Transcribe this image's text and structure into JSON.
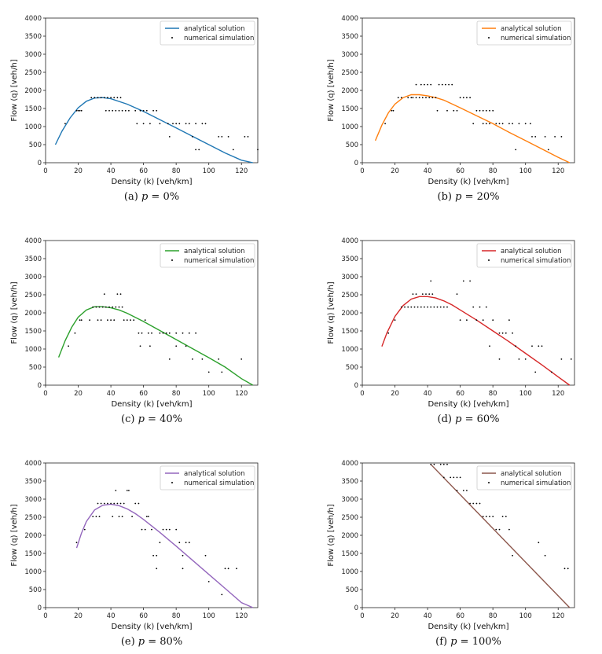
{
  "figure": {
    "title": ""
  },
  "chart_data": [
    {
      "type": "line+scatter",
      "label": "(a)",
      "caption_var": "p",
      "caption_value": "= 0%",
      "color": "#1f77b4",
      "xlabel": "Density (k) [veh/km]",
      "ylabel": "Flow (q) [veh/h]",
      "xlim": [
        0,
        130
      ],
      "ylim": [
        0,
        4000
      ],
      "xticks": [
        "0",
        "20",
        "40",
        "60",
        "80",
        "100",
        "120"
      ],
      "yticks": [
        "0",
        "500",
        "1000",
        "1500",
        "2000",
        "2500",
        "3000",
        "3500",
        "4000"
      ],
      "legend": {
        "position": "top-right",
        "line": "analytical solution",
        "points": "numerical simulation"
      },
      "analytical": {
        "x": [
          6,
          10,
          15,
          20,
          25,
          30,
          35,
          40,
          50,
          60,
          70,
          80,
          90,
          100,
          110,
          120,
          127
        ],
        "y": [
          500,
          870,
          1240,
          1520,
          1700,
          1790,
          1800,
          1770,
          1620,
          1420,
          1190,
          960,
          730,
          500,
          270,
          70,
          0
        ]
      },
      "numerical": {
        "x": [
          12,
          19,
          20,
          21,
          22,
          28,
          30,
          32,
          34,
          36,
          38,
          40,
          42,
          44,
          46,
          37,
          39,
          41,
          43,
          45,
          47,
          49,
          51,
          55,
          58,
          60,
          62,
          66,
          68,
          56,
          60,
          64,
          70,
          75,
          78,
          80,
          82,
          86,
          88,
          92,
          96,
          98,
          76,
          90,
          106,
          108,
          112,
          115,
          122,
          124,
          130,
          92,
          94
        ],
        "y": [
          1080,
          1440,
          1440,
          1440,
          1440,
          1800,
          1800,
          1800,
          1800,
          1800,
          1800,
          1800,
          1800,
          1800,
          1800,
          1440,
          1440,
          1440,
          1440,
          1440,
          1440,
          1440,
          1440,
          1440,
          1440,
          1440,
          1440,
          1440,
          1440,
          1080,
          1080,
          1080,
          1080,
          1080,
          1080,
          1080,
          1080,
          1080,
          1080,
          1080,
          1080,
          1080,
          720,
          720,
          720,
          720,
          720,
          360,
          720,
          720,
          360,
          360,
          360
        ]
      }
    },
    {
      "type": "line+scatter",
      "label": "(b)",
      "caption_var": "p",
      "caption_value": "= 20%",
      "color": "#ff7f0e",
      "xlabel": "Density (k) [veh/km]",
      "ylabel": "Flow (q) [veh/h]",
      "xlim": [
        0,
        130
      ],
      "ylim": [
        0,
        4000
      ],
      "xticks": [
        "0",
        "20",
        "40",
        "60",
        "80",
        "100",
        "120"
      ],
      "yticks": [
        "0",
        "500",
        "1000",
        "1500",
        "2000",
        "2500",
        "3000",
        "3500",
        "4000"
      ],
      "legend": {
        "position": "top-right",
        "line": "analytical solution",
        "points": "numerical simulation"
      },
      "analytical": {
        "x": [
          8,
          12,
          16,
          20,
          25,
          30,
          35,
          40,
          45,
          50,
          60,
          70,
          80,
          90,
          100,
          110,
          120,
          127
        ],
        "y": [
          610,
          1040,
          1380,
          1620,
          1800,
          1880,
          1880,
          1850,
          1800,
          1730,
          1520,
          1300,
          1080,
          840,
          610,
          380,
          150,
          0
        ]
      },
      "numerical": {
        "x": [
          14,
          18,
          19,
          22,
          24,
          28,
          30,
          31,
          33,
          35,
          37,
          39,
          41,
          43,
          45,
          33,
          36,
          38,
          40,
          42,
          47,
          49,
          51,
          53,
          55,
          60,
          62,
          64,
          66,
          70,
          72,
          74,
          76,
          78,
          80,
          84,
          46,
          52,
          56,
          58,
          68,
          74,
          76,
          78,
          82,
          86,
          90,
          92,
          96,
          100,
          103,
          104,
          94,
          106,
          112,
          114,
          118,
          122
        ],
        "y": [
          1080,
          1440,
          1440,
          1800,
          1800,
          1800,
          1800,
          1800,
          1800,
          1800,
          1800,
          1800,
          1800,
          1800,
          1800,
          2160,
          2160,
          2160,
          2160,
          2160,
          2160,
          2160,
          2160,
          2160,
          2160,
          1800,
          1800,
          1800,
          1800,
          1440,
          1440,
          1440,
          1440,
          1440,
          1440,
          1080,
          1440,
          1440,
          1440,
          1440,
          1080,
          1080,
          1080,
          1080,
          1080,
          1080,
          1080,
          1080,
          1080,
          1080,
          1080,
          720,
          360,
          720,
          720,
          360,
          720,
          720
        ]
      }
    },
    {
      "type": "line+scatter",
      "label": "(c)",
      "caption_var": "p",
      "caption_value": "= 40%",
      "color": "#2ca02c",
      "xlabel": "Density (k) [veh/km]",
      "ylabel": "Flow (q) [veh/h]",
      "xlim": [
        0,
        130
      ],
      "ylim": [
        0,
        4000
      ],
      "xticks": [
        "0",
        "20",
        "40",
        "60",
        "80",
        "100",
        "120"
      ],
      "yticks": [
        "0",
        "500",
        "1000",
        "1500",
        "2000",
        "2500",
        "3000",
        "3500",
        "4000"
      ],
      "legend": {
        "position": "top-right",
        "line": "analytical solution",
        "points": "numerical simulation"
      },
      "analytical": {
        "x": [
          8,
          12,
          16,
          20,
          25,
          30,
          35,
          40,
          45,
          50,
          60,
          70,
          80,
          90,
          100,
          110,
          120,
          127
        ],
        "y": [
          770,
          1230,
          1600,
          1880,
          2080,
          2170,
          2170,
          2140,
          2080,
          1990,
          1760,
          1510,
          1260,
          1010,
          760,
          500,
          180,
          0
        ]
      },
      "numerical": {
        "x": [
          14,
          18,
          21,
          22,
          27,
          29,
          31,
          33,
          35,
          37,
          39,
          41,
          43,
          45,
          47,
          36,
          44,
          46,
          32,
          34,
          38,
          40,
          42,
          48,
          50,
          52,
          54,
          57,
          59,
          61,
          63,
          65,
          70,
          72,
          74,
          76,
          80,
          84,
          88,
          92,
          58,
          64,
          80,
          86,
          76,
          90,
          96,
          100,
          108,
          120,
          106
        ],
        "y": [
          1080,
          1440,
          1800,
          1800,
          1800,
          2160,
          2160,
          2160,
          2160,
          2160,
          2160,
          2160,
          2160,
          2160,
          2160,
          2520,
          2520,
          2520,
          1800,
          1800,
          1800,
          1800,
          1800,
          1800,
          1800,
          1800,
          1800,
          1440,
          1440,
          1800,
          1440,
          1440,
          1440,
          1440,
          1440,
          1440,
          1440,
          1440,
          1440,
          1440,
          1080,
          1080,
          1080,
          1080,
          720,
          720,
          720,
          360,
          360,
          720,
          720
        ]
      }
    },
    {
      "type": "line+scatter",
      "label": "(d)",
      "caption_var": "p",
      "caption_value": "= 60%",
      "color": "#d62728",
      "xlabel": "Density (k) [veh/km]",
      "ylabel": "Flow (q) [veh/h]",
      "xlim": [
        0,
        130
      ],
      "ylim": [
        0,
        4000
      ],
      "xticks": [
        "0",
        "20",
        "40",
        "60",
        "80",
        "100",
        "120"
      ],
      "yticks": [
        "0",
        "500",
        "1000",
        "1500",
        "2000",
        "2500",
        "3000",
        "3500",
        "4000"
      ],
      "legend": {
        "position": "top-right",
        "line": "analytical solution",
        "points": "numerical simulation"
      },
      "analytical": {
        "x": [
          12,
          15,
          20,
          25,
          30,
          35,
          40,
          45,
          50,
          55,
          60,
          70,
          80,
          90,
          100,
          110,
          120,
          127
        ],
        "y": [
          1070,
          1440,
          1900,
          2200,
          2380,
          2450,
          2450,
          2410,
          2330,
          2220,
          2080,
          1800,
          1500,
          1200,
          880,
          560,
          230,
          0
        ]
      },
      "numerical": {
        "x": [
          16,
          20,
          24,
          26,
          28,
          30,
          32,
          34,
          36,
          38,
          40,
          42,
          44,
          46,
          48,
          50,
          52,
          31,
          33,
          37,
          39,
          41,
          43,
          58,
          62,
          66,
          68,
          72,
          76,
          42,
          60,
          64,
          70,
          74,
          80,
          84,
          86,
          88,
          90,
          92,
          78,
          94,
          96,
          100,
          104,
          108,
          110,
          116,
          122,
          128,
          84,
          106
        ],
        "y": [
          1440,
          1800,
          2160,
          2160,
          2160,
          2160,
          2160,
          2160,
          2160,
          2160,
          2160,
          2160,
          2160,
          2160,
          2160,
          2160,
          2160,
          2520,
          2520,
          2520,
          2520,
          2520,
          2520,
          2520,
          2880,
          2880,
          2160,
          2160,
          2160,
          2880,
          1800,
          1800,
          1800,
          1800,
          1800,
          1440,
          1440,
          1440,
          1800,
          1440,
          1080,
          1080,
          720,
          720,
          1080,
          1080,
          1080,
          360,
          720,
          720,
          720,
          360
        ]
      }
    },
    {
      "type": "line+scatter",
      "label": "(e)",
      "caption_var": "p",
      "caption_value": "= 80%",
      "color": "#9467bd",
      "xlabel": "Density (k) [veh/km]",
      "ylabel": "Flow (q) [veh/h]",
      "xlim": [
        0,
        130
      ],
      "ylim": [
        0,
        4000
      ],
      "xticks": [
        "0",
        "20",
        "40",
        "60",
        "80",
        "100",
        "120"
      ],
      "yticks": [
        "0",
        "500",
        "1000",
        "1500",
        "2000",
        "2500",
        "3000",
        "3500",
        "4000"
      ],
      "legend": {
        "position": "top-right",
        "line": "analytical solution",
        "points": "numerical simulation"
      },
      "analytical": {
        "x": [
          19,
          22,
          25,
          30,
          35,
          40,
          45,
          50,
          55,
          60,
          70,
          80,
          90,
          100,
          110,
          120,
          127
        ],
        "y": [
          1650,
          2060,
          2380,
          2700,
          2830,
          2860,
          2820,
          2730,
          2600,
          2440,
          2080,
          1700,
          1310,
          920,
          530,
          140,
          0
        ]
      },
      "numerical": {
        "x": [
          19,
          24,
          29,
          32,
          34,
          36,
          38,
          40,
          42,
          44,
          46,
          48,
          31,
          33,
          41,
          45,
          47,
          53,
          55,
          57,
          43,
          51,
          59,
          61,
          63,
          65,
          50,
          62,
          66,
          70,
          74,
          76,
          82,
          86,
          88,
          72,
          80,
          84,
          68,
          98,
          100,
          68,
          110,
          112,
          117,
          84,
          108
        ],
        "y": [
          1800,
          2160,
          2520,
          2880,
          2880,
          2880,
          2880,
          2880,
          2880,
          2880,
          2880,
          2880,
          2520,
          2520,
          2520,
          2520,
          2520,
          2520,
          2880,
          2880,
          3240,
          3240,
          2160,
          2160,
          2520,
          2160,
          3240,
          2520,
          1440,
          1800,
          2160,
          2160,
          1800,
          1800,
          1800,
          2160,
          2160,
          1440,
          1440,
          1440,
          720,
          1080,
          1080,
          1080,
          1080,
          1080,
          360
        ]
      }
    },
    {
      "type": "line+scatter",
      "label": "(f)",
      "caption_var": "p",
      "caption_value": "= 100%",
      "color": "#8c564b",
      "xlabel": "Density (k) [veh/km]",
      "ylabel": "Flow (q) [veh/h]",
      "xlim": [
        0,
        130
      ],
      "ylim": [
        0,
        4000
      ],
      "xticks": [
        "0",
        "20",
        "40",
        "60",
        "80",
        "100",
        "120"
      ],
      "yticks": [
        "0",
        "500",
        "1000",
        "1500",
        "2000",
        "2500",
        "3000",
        "3500",
        "4000"
      ],
      "legend": {
        "position": "top-right",
        "line": "analytical solution",
        "points": "numerical simulation"
      },
      "analytical": {
        "x": [
          42,
          127
        ],
        "y": [
          3960,
          0
        ]
      },
      "numerical": {
        "x": [
          42,
          44,
          48,
          50,
          52,
          50,
          54,
          56,
          58,
          60,
          58,
          62,
          64,
          66,
          68,
          70,
          72,
          74,
          76,
          78,
          80,
          84,
          86,
          88,
          82,
          90,
          92,
          108,
          112,
          124,
          126
        ],
        "y": [
          3960,
          3960,
          3960,
          3960,
          3960,
          3600,
          3600,
          3600,
          3600,
          3600,
          3240,
          3240,
          3240,
          2880,
          2880,
          2880,
          2880,
          2520,
          2520,
          2520,
          2520,
          2160,
          2520,
          2520,
          2160,
          2160,
          1440,
          1800,
          1440,
          1080,
          1080
        ]
      }
    }
  ]
}
